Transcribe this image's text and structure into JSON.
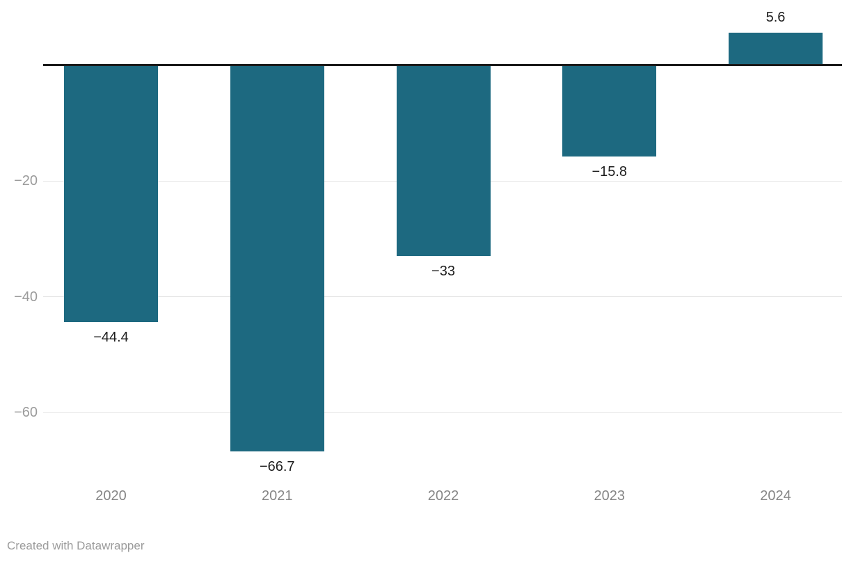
{
  "chart_data": {
    "type": "bar",
    "title": "",
    "xlabel": "",
    "ylabel": "",
    "categories": [
      "2020",
      "2021",
      "2022",
      "2023",
      "2024"
    ],
    "values": [
      -44.4,
      -66.7,
      -33,
      -15.8,
      5.6
    ],
    "value_labels": [
      "−44.4",
      "−66.7",
      "−33",
      "−15.8",
      "5.6"
    ],
    "yticks": [
      {
        "value": -20,
        "label": "−20"
      },
      {
        "value": -40,
        "label": "−40"
      },
      {
        "value": -60,
        "label": "−60"
      }
    ],
    "ylim": [
      -72,
      8
    ],
    "baseline_value": 0,
    "grid": "horizontal-only",
    "legend": "none"
  },
  "colors": {
    "bar": "#1d6980",
    "baseline": "#1a1a1a",
    "gridline": "#e4e4e4",
    "value_label": "#1d1d1d",
    "category_label": "#868686",
    "tick_label": "#9b9b9b",
    "credit": "#9b9b9b",
    "background": "#ffffff"
  },
  "footer": {
    "credit": "Created with Datawrapper"
  }
}
